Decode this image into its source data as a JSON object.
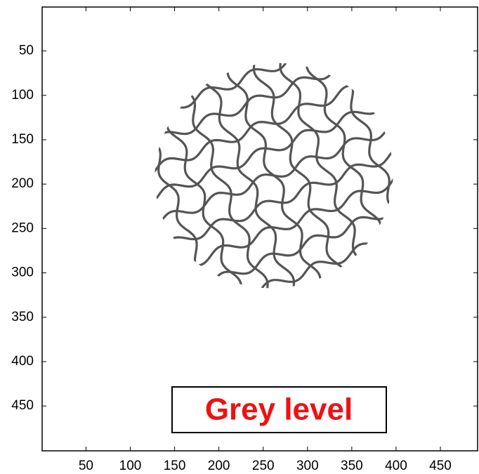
{
  "chart_data": {
    "type": "image",
    "xlim": [
      0.5,
      492
    ],
    "ylim": [
      0.5,
      500.5
    ],
    "y_reversed": true,
    "xticks": [
      50,
      100,
      150,
      200,
      250,
      300,
      350,
      400,
      450
    ],
    "yticks": [
      50,
      100,
      150,
      200,
      250,
      300,
      350,
      400,
      450
    ],
    "annotation": "Grey level",
    "annotation_color": "#ee1111"
  }
}
